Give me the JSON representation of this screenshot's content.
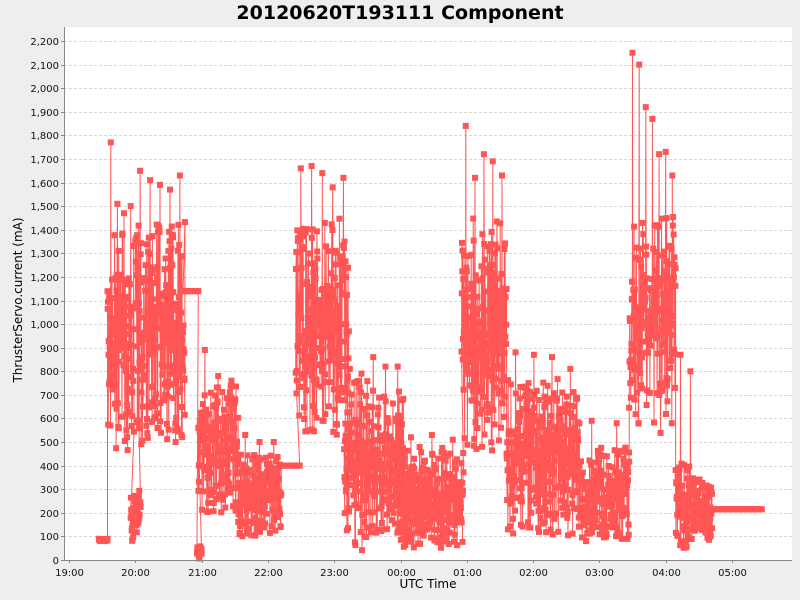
{
  "chart_data": {
    "type": "line",
    "title": "20120620T193111 Component",
    "xlabel": "UTC Time",
    "ylabel": "ThrusterServo.current (mA)",
    "ylim": [
      0,
      2250
    ],
    "xlim_hours": [
      18.92,
      29.9
    ],
    "y_ticks": [
      0,
      100,
      200,
      300,
      400,
      500,
      600,
      700,
      800,
      900,
      1000,
      1100,
      1200,
      1300,
      1400,
      1500,
      1600,
      1700,
      1800,
      1900,
      2000,
      2100,
      2200
    ],
    "y_tick_labels": [
      "0",
      "100",
      "200",
      "300",
      "400",
      "500",
      "600",
      "700",
      "800",
      "900",
      "1,000",
      "1,100",
      "1,200",
      "1,300",
      "1,400",
      "1,500",
      "1,600",
      "1,700",
      "1,800",
      "1,900",
      "2,000",
      "2,100",
      "2,200"
    ],
    "x_ticks": [
      19,
      20,
      21,
      22,
      23,
      24,
      25,
      26,
      27,
      28,
      29
    ],
    "x_tick_labels": [
      "19:00",
      "20:00",
      "21:00",
      "22:00",
      "23:00",
      "00:00",
      "01:00",
      "02:00",
      "03:00",
      "04:00",
      "05:00"
    ],
    "grid": true,
    "legend": false,
    "marker": "square",
    "series_color": "#ff5555",
    "series": [
      {
        "name": "ThrusterServo.current",
        "segments": [
          {
            "t_start": 19.45,
            "t_end": 19.58,
            "low": 80,
            "high": 90,
            "note": "initial low idle"
          },
          {
            "t_start": 19.58,
            "t_end": 19.98,
            "low": 450,
            "high": 1400,
            "peaks": [
              1770,
              1510,
              1470,
              1500
            ]
          },
          {
            "t_start": 19.93,
            "t_end": 20.08,
            "low": 80,
            "high": 310
          },
          {
            "t_start": 20.0,
            "t_end": 20.75,
            "low": 480,
            "high": 1450,
            "peaks": [
              1650,
              1610,
              1590,
              1570,
              1630
            ]
          },
          {
            "t_start": 20.72,
            "t_end": 20.95,
            "low": 1140,
            "high": 1140,
            "note": "flat plateau"
          },
          {
            "t_start": 20.93,
            "t_end": 21.0,
            "low": 0,
            "high": 60
          },
          {
            "t_start": 20.95,
            "t_end": 21.55,
            "low": 200,
            "high": 750,
            "peaks": [
              890,
              780,
              760
            ]
          },
          {
            "t_start": 21.55,
            "t_end": 22.2,
            "low": 100,
            "high": 450,
            "peaks": [
              530,
              500,
              500
            ]
          },
          {
            "t_start": 22.2,
            "t_end": 22.48,
            "low": 400,
            "high": 400,
            "note": "flat plateau"
          },
          {
            "t_start": 22.42,
            "t_end": 23.22,
            "low": 530,
            "high": 1450,
            "peaks": [
              1660,
              1670,
              1640,
              1580,
              1620
            ]
          },
          {
            "t_start": 23.15,
            "t_end": 23.5,
            "low": 40,
            "high": 780,
            "peaks": [
              810,
              790
            ]
          },
          {
            "t_start": 23.5,
            "t_end": 24.05,
            "low": 100,
            "high": 720,
            "peaks": [
              860,
              820,
              820
            ]
          },
          {
            "t_start": 24.0,
            "t_end": 24.95,
            "low": 50,
            "high": 480,
            "peaks": [
              520,
              530,
              510
            ]
          },
          {
            "t_start": 24.92,
            "t_end": 25.6,
            "low": 460,
            "high": 1450,
            "peaks": [
              1840,
              1620,
              1720,
              1690,
              1630
            ]
          },
          {
            "t_start": 25.6,
            "t_end": 26.7,
            "low": 100,
            "high": 770,
            "peaks": [
              880,
              870,
              860,
              810
            ]
          },
          {
            "t_start": 26.7,
            "t_end": 27.45,
            "low": 80,
            "high": 480,
            "peaks": [
              590,
              580
            ]
          },
          {
            "t_start": 27.45,
            "t_end": 28.15,
            "low": 520,
            "high": 1460,
            "peaks": [
              2150,
              2100,
              1920,
              1870,
              1720,
              1730,
              1630
            ]
          },
          {
            "t_start": 28.15,
            "t_end": 28.45,
            "low": 50,
            "high": 420,
            "peaks": [
              870,
              800
            ]
          },
          {
            "t_start": 28.45,
            "t_end": 28.7,
            "low": 80,
            "high": 360
          },
          {
            "t_start": 28.7,
            "t_end": 29.45,
            "low": 215,
            "high": 215,
            "note": "flat tail"
          }
        ]
      }
    ]
  }
}
